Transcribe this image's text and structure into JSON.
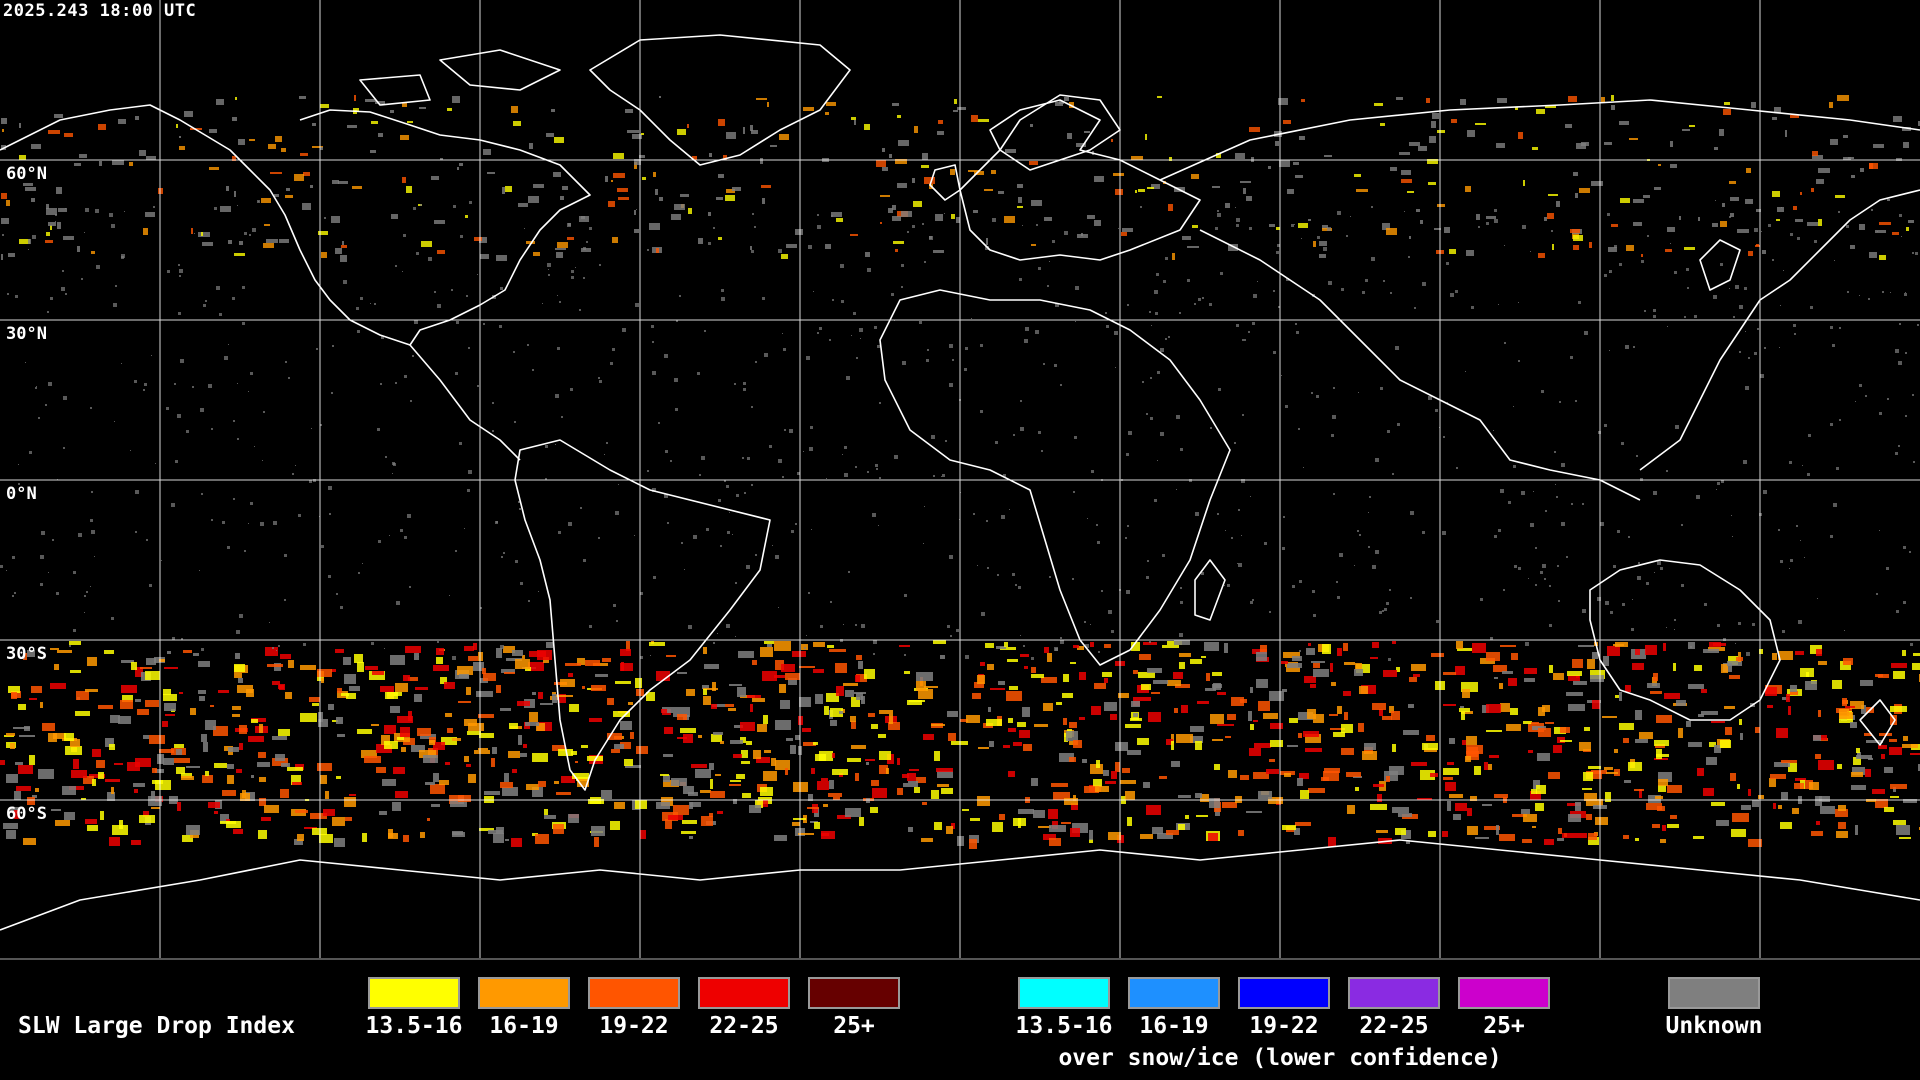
{
  "timestamp": "2025.243 18:00 UTC",
  "lat_labels": [
    "60°N",
    "30°N",
    "0°N",
    "30°S",
    "60°S"
  ],
  "legend": {
    "title": "SLW Large Drop Index",
    "normal": [
      {
        "label": "13.5-16",
        "color": "#ffff00"
      },
      {
        "label": "16-19",
        "color": "#ff9900"
      },
      {
        "label": "19-22",
        "color": "#ff5500"
      },
      {
        "label": "22-25",
        "color": "#ee0000"
      },
      {
        "label": "25+",
        "color": "#660000"
      }
    ],
    "snow": [
      {
        "label": "13.5-16",
        "color": "#00ffff"
      },
      {
        "label": "16-19",
        "color": "#1e90ff"
      },
      {
        "label": "19-22",
        "color": "#0000ff"
      },
      {
        "label": "22-25",
        "color": "#8a2be2"
      },
      {
        "label": "25+",
        "color": "#cc00cc"
      }
    ],
    "snow_caption": "over snow/ice (lower confidence)",
    "unknown": {
      "label": "Unknown",
      "color": "#7f7f7f"
    }
  }
}
